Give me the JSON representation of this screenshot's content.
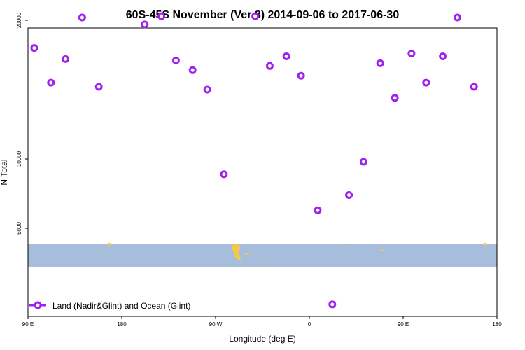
{
  "chart_data": {
    "type": "scatter",
    "title": "60S-45S November (Ver 8)   2014-09-06 to 2017-06-30",
    "xlabel": "Longitude (deg E)",
    "ylabel": "N Total",
    "xlim": [
      90,
      540
    ],
    "ylim": [
      0,
      26000
    ],
    "x_ticks": [
      {
        "value": 90,
        "label": "90 E"
      },
      {
        "value": 180,
        "label": "180"
      },
      {
        "value": 270,
        "label": "90 W"
      },
      {
        "value": 360,
        "label": "0"
      },
      {
        "value": 450,
        "label": "90 E"
      },
      {
        "value": 540,
        "label": "180"
      }
    ],
    "y_ticks": [
      {
        "value": 5000,
        "label": "5000"
      },
      {
        "value": 10000,
        "label": "10000"
      },
      {
        "value": 20000,
        "label": "20000"
      }
    ],
    "legend": {
      "position": "bottom-left",
      "entry": "Land (Nadir&Glint) and Ocean (Glint)"
    },
    "series": [
      {
        "name": "Land (Nadir&Glint) and Ocean (Glint)",
        "color": "#a020f0",
        "x": [
          96,
          112,
          126,
          142,
          158,
          172,
          188,
          202,
          218,
          232,
          248,
          262,
          278,
          292,
          308,
          322,
          338,
          352,
          368,
          382,
          398,
          412,
          428,
          442,
          458,
          472,
          488,
          502,
          518,
          534
        ],
        "y": [
          18000,
          15500,
          17200,
          20200,
          15200,
          24800,
          24700,
          19700,
          20300,
          17100,
          16400,
          15000,
          8900,
          23300,
          20300,
          16700,
          17400,
          16000,
          6300,
          -500,
          7400,
          9800,
          16900,
          14400,
          17600,
          15500,
          17400,
          20200,
          15200,
          24900
        ]
      }
    ],
    "grid": false,
    "background_band": {
      "color": "#a7bddc",
      "land_color": "#f5c84a"
    }
  }
}
